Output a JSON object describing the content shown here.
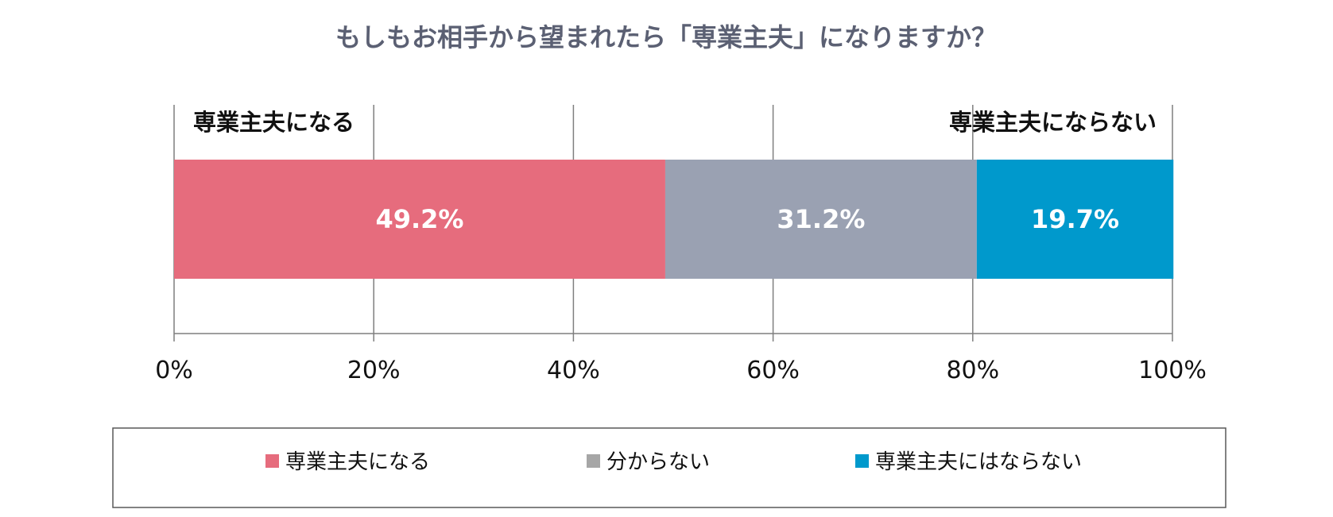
{
  "chart_data": {
    "type": "bar",
    "orientation": "horizontal",
    "stacked": true,
    "title": "もしもお相手から望まれたら「専業主夫」になりますか？",
    "xlim": [
      0,
      100
    ],
    "x_ticks": [
      "0%",
      "20%",
      "40%",
      "60%",
      "80%",
      "100%"
    ],
    "grid": true,
    "legend_position": "bottom",
    "annotations": {
      "left": "専業主夫になる",
      "right": "専業主夫にならない"
    },
    "series": [
      {
        "name": "専業主夫になる",
        "value": 49.2,
        "label": "49.2%",
        "color": "#e66c7d"
      },
      {
        "name": "分からない",
        "value": 31.2,
        "label": "31.2%",
        "color": "#9aa1b2"
      },
      {
        "name": "専業主夫にはならない",
        "value": 19.7,
        "label": "19.7%",
        "color": "#0099cc"
      }
    ],
    "legend_colors": [
      "#e66c7d",
      "#a6a6a6",
      "#0099cc"
    ]
  }
}
